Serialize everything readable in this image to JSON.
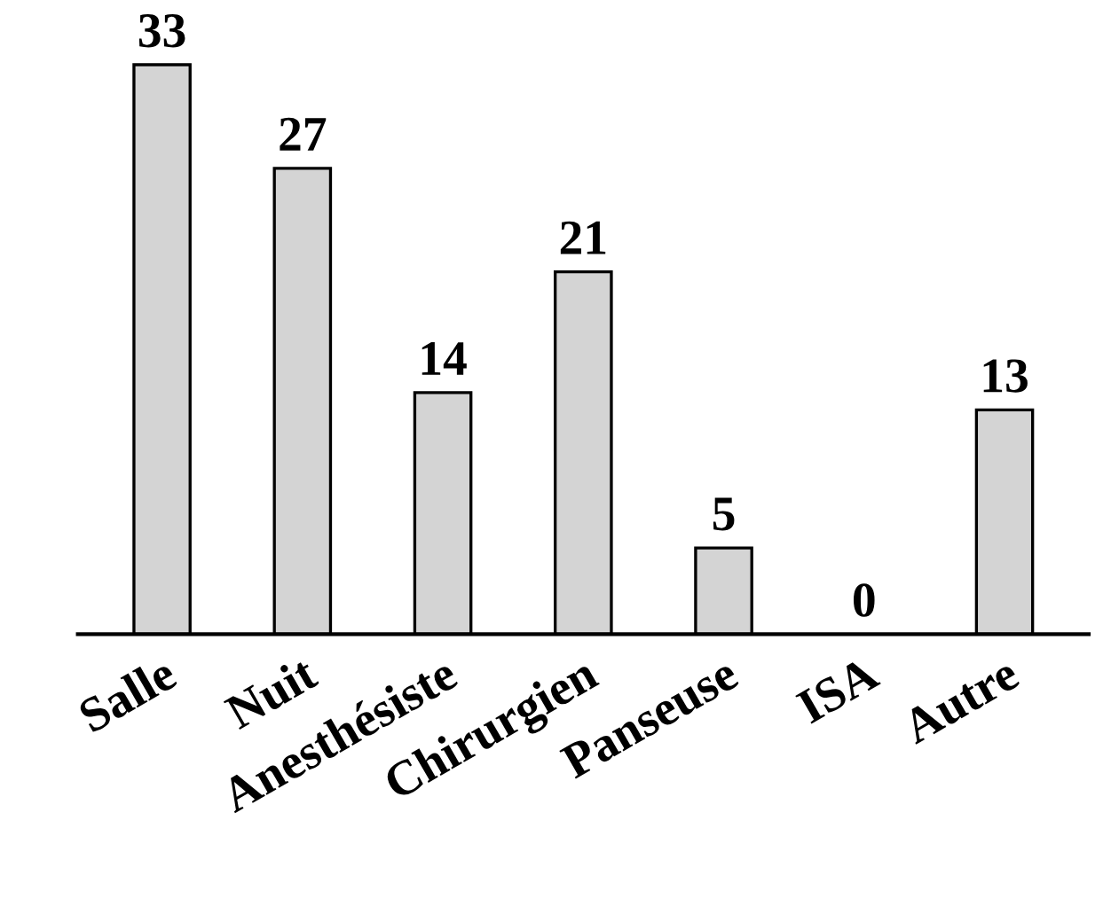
{
  "chart_data": {
    "type": "bar",
    "categories": [
      "Salle",
      "Nuit",
      "Anesthésiste",
      "Chirurgien",
      "Panseuse",
      "ISA",
      "Autre"
    ],
    "values": [
      33,
      27,
      14,
      21,
      5,
      0,
      13
    ],
    "color": "#d4d4d4",
    "data_labels": true,
    "grid": false,
    "legend": false
  }
}
